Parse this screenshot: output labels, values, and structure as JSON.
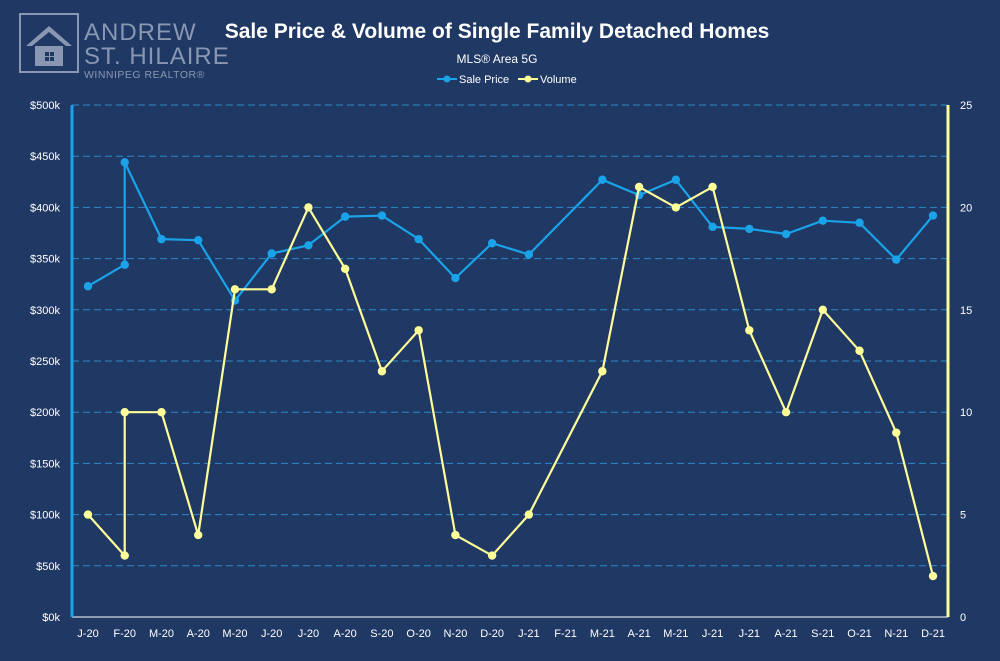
{
  "logo": {
    "line1": "ANDREW",
    "line2": "ST. HILAIRE",
    "line3": "WINNIPEG REALTOR®"
  },
  "chart_data": {
    "type": "line",
    "title": "Sale Price & Volume of Single Family Detached Homes",
    "subtitle": "MLS® Area 5G",
    "categories": [
      "J-20",
      "F-20",
      "M-20",
      "A-20",
      "M-20",
      "J-20",
      "J-20",
      "A-20",
      "S-20",
      "O-20",
      "N-20",
      "D-20",
      "J-21",
      "F-21",
      "M-21",
      "A-21",
      "M-21",
      "J-21",
      "J-21",
      "A-21",
      "S-21",
      "O-21",
      "N-21",
      "D-21"
    ],
    "series": [
      {
        "name": "Sale Price",
        "axis": "left",
        "color": "#1aa3e8",
        "points": [
          [
            0,
            323000
          ],
          [
            1,
            344000
          ],
          [
            1,
            444000
          ],
          [
            2,
            369000
          ],
          [
            3,
            368000
          ],
          [
            4,
            309000
          ],
          [
            5,
            355000
          ],
          [
            6,
            363000
          ],
          [
            7,
            391000
          ],
          [
            8,
            392000
          ],
          [
            9,
            369000
          ],
          [
            10,
            331000
          ],
          [
            11,
            365000
          ],
          [
            12,
            354000
          ],
          [
            14,
            427000
          ],
          [
            15,
            412000
          ],
          [
            16,
            427000
          ],
          [
            17,
            381000
          ],
          [
            18,
            379000
          ],
          [
            19,
            374000
          ],
          [
            20,
            387000
          ],
          [
            21,
            385000
          ],
          [
            22,
            349000
          ],
          [
            23,
            392000
          ]
        ]
      },
      {
        "name": "Volume",
        "axis": "right",
        "color": "#ffff99",
        "points": [
          [
            0,
            5
          ],
          [
            1,
            3
          ],
          [
            1,
            10
          ],
          [
            2,
            10
          ],
          [
            3,
            4
          ],
          [
            4,
            16
          ],
          [
            5,
            16
          ],
          [
            6,
            20
          ],
          [
            7,
            17
          ],
          [
            8,
            12
          ],
          [
            9,
            14
          ],
          [
            10,
            4
          ],
          [
            11,
            3
          ],
          [
            12,
            5
          ],
          [
            14,
            12
          ],
          [
            15,
            21
          ],
          [
            16,
            20
          ],
          [
            17,
            21
          ],
          [
            18,
            14
          ],
          [
            19,
            10
          ],
          [
            20,
            15
          ],
          [
            21,
            13
          ],
          [
            22,
            9
          ],
          [
            23,
            2
          ]
        ]
      }
    ],
    "left_axis": {
      "ylim": [
        0,
        500000
      ],
      "ticks": [
        0,
        50000,
        100000,
        150000,
        200000,
        250000,
        300000,
        350000,
        400000,
        450000,
        500000
      ],
      "tick_labels": [
        "$0k",
        "$50k",
        "$100k",
        "$150k",
        "$200k",
        "$250k",
        "$300k",
        "$350k",
        "$400k",
        "$450k",
        "$500k"
      ],
      "color": "#1aa3e8"
    },
    "right_axis": {
      "ylim": [
        0,
        25
      ],
      "ticks": [
        0,
        5,
        10,
        15,
        20,
        25
      ],
      "tick_labels": [
        "0",
        "5",
        "10",
        "15",
        "20",
        "25"
      ],
      "color": "#ffff99"
    },
    "grid": true,
    "legend_position": "top-center"
  }
}
